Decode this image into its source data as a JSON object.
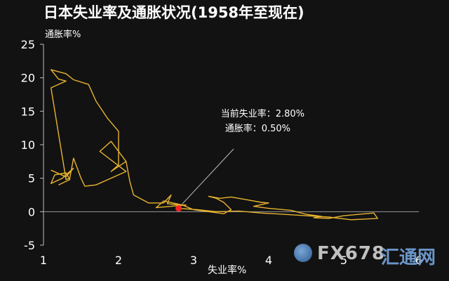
{
  "title": "日本失业率及通胀状况(1958年至现在)",
  "watermark": {
    "brand": "FX678",
    "sub": "汇通网"
  },
  "annotation": {
    "line1": "当前失业率：2.80%",
    "line2": "通胀率：0.50%"
  },
  "chart_data": {
    "type": "line",
    "xlabel": "失业率%",
    "ylabel": "通胀率%",
    "xlim": [
      1,
      6
    ],
    "ylim": [
      -5,
      25
    ],
    "xticks": [
      "1",
      "2",
      "3",
      "4",
      "5",
      "6"
    ],
    "yticks": [
      "25",
      "20",
      "15",
      "10",
      "5",
      "0",
      "-5"
    ],
    "grid": false,
    "line_color": "#e8b430",
    "series": [
      {
        "x": [
          2.1,
          1.9,
          1.75,
          2.1,
          1.7,
          1.55,
          1.5,
          1.4,
          1.35,
          1.3,
          1.1,
          1.3,
          1.2,
          1.1,
          1.3,
          1.4,
          1.6,
          1.7,
          1.85,
          2.0,
          2.0,
          1.9,
          2.1,
          2.15,
          2.2,
          2.4,
          2.6,
          2.7,
          2.65,
          2.8,
          2.9,
          2.5,
          2.6,
          2.85,
          3.0,
          3.2,
          3.4,
          3.5,
          3.4,
          3.3,
          3.2,
          3.35,
          3.5,
          3.7,
          3.9,
          4.0,
          3.8,
          4.0,
          4.3,
          4.5,
          4.7,
          4.6,
          4.8,
          5.0,
          5.2,
          5.4,
          5.45,
          5.1,
          4.8,
          4.5,
          4.2,
          3.9,
          3.6,
          3.3,
          3.05,
          2.8
        ],
        "y": [
          7.5,
          10.5,
          9.0,
          6.0,
          4.0,
          3.8,
          5.0,
          8.0,
          5.0,
          4.8,
          18.5,
          19.5,
          19.8,
          21.2,
          20.6,
          19.7,
          19.0,
          16.5,
          14.0,
          12.0,
          7.0,
          6.0,
          7.5,
          4.5,
          2.5,
          1.3,
          1.3,
          2.5,
          1.2,
          1.0,
          1.0,
          0.6,
          1.6,
          1.0,
          0.3,
          0.0,
          -0.3,
          0.3,
          1.4,
          2.0,
          2.3,
          2.0,
          2.2,
          1.8,
          1.4,
          1.3,
          0.8,
          0.5,
          0.2,
          -0.4,
          -0.7,
          -0.9,
          -1.0,
          -0.6,
          -0.4,
          -0.2,
          -1.0,
          -1.2,
          -0.8,
          -0.6,
          -0.4,
          -0.2,
          0.1,
          0.0,
          0.3,
          0.5
        ]
      },
      {
        "x": [
          1.1,
          1.3,
          1.4,
          1.25,
          1.1,
          1.15,
          1.3,
          1.35,
          1.2
        ],
        "y": [
          6.2,
          5.2,
          6.5,
          5.0,
          4.2,
          5.5,
          5.8,
          4.8,
          4.0
        ]
      }
    ],
    "current_point": {
      "x": 2.8,
      "y": 0.5
    }
  }
}
